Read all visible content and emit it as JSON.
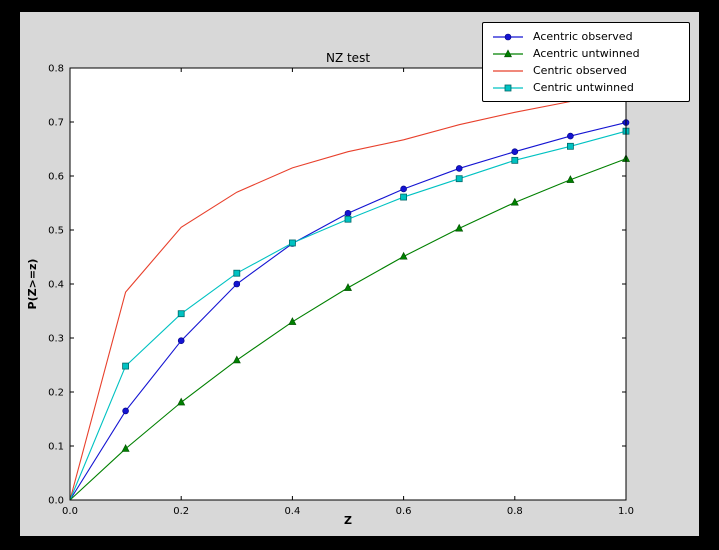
{
  "chart_data": {
    "type": "line",
    "title": "NZ test",
    "xlabel": "Z",
    "ylabel": "P(Z>=z)",
    "xlim": [
      0.0,
      1.0
    ],
    "ylim": [
      0.0,
      0.8
    ],
    "grid": false,
    "legend_position": "upper right",
    "x_ticks": [
      "0.0",
      "0.2",
      "0.4",
      "0.6",
      "0.8",
      "1.0"
    ],
    "y_ticks": [
      "0.0",
      "0.1",
      "0.2",
      "0.3",
      "0.4",
      "0.5",
      "0.6",
      "0.7",
      "0.8"
    ],
    "x": [
      0.0,
      0.1,
      0.2,
      0.3,
      0.4,
      0.5,
      0.6,
      0.7,
      0.8,
      0.9,
      1.0
    ],
    "series": [
      {
        "name": "Acentric observed",
        "color": "#1414d2",
        "edge": "#000080",
        "marker": "circle",
        "values": [
          0.0,
          0.165,
          0.295,
          0.4,
          0.475,
          0.531,
          0.576,
          0.614,
          0.645,
          0.674,
          0.699
        ]
      },
      {
        "name": "Acentric untwinned",
        "color": "#008000",
        "edge": "#004d00",
        "marker": "triangle",
        "values": [
          0.0,
          0.095,
          0.181,
          0.259,
          0.33,
          0.393,
          0.451,
          0.503,
          0.551,
          0.593,
          0.632
        ]
      },
      {
        "name": "Centric observed",
        "color": "#e8402c",
        "edge": "#e8402c",
        "marker": "none",
        "values": [
          0.0,
          0.385,
          0.505,
          0.57,
          0.615,
          0.645,
          0.667,
          0.695,
          0.718,
          0.738,
          0.757
        ]
      },
      {
        "name": "Centric untwinned",
        "color": "#00c2c2",
        "edge": "#006868",
        "marker": "square",
        "values": [
          0.0,
          0.248,
          0.345,
          0.42,
          0.476,
          0.52,
          0.561,
          0.595,
          0.629,
          0.655,
          0.683
        ]
      }
    ]
  }
}
